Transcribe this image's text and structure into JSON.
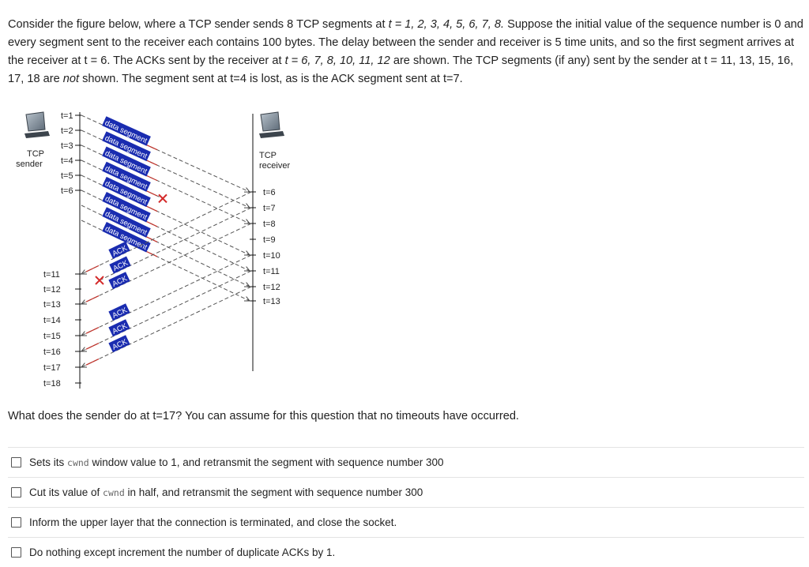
{
  "question": {
    "p1": "Consider the figure below, where a TCP sender sends 8 TCP segments at ",
    "p2": "t = 1, 2, 3, 4, 5, 6, 7, 8.",
    "p3": "  Suppose the initial value of the sequence number is 0 and every segment sent to the receiver each contains 100 bytes. The delay between the sender and receiver is 5 time units, and so the first segment arrives at the receiver at t = 6.  The ACKs sent by the receiver at ",
    "p4": "t = 6, 7, 8, 10, 11, 12",
    "p5": " are shown.  The TCP segments (if any) sent by the sender at t = 11, 13, 15, 16, 17, 18 are ",
    "p6": "not",
    "p7": " shown. The segment sent at t=4 is lost, as is the ACK segment sent at t=7."
  },
  "diagram": {
    "sender_label": [
      "TCP",
      "sender"
    ],
    "receiver_label": [
      "TCP",
      "receiver"
    ],
    "sender_times": [
      "t=1",
      "t=2",
      "t=3",
      "t=4",
      "t=5",
      "t=6",
      "t=11",
      "t=12",
      "t=13",
      "t=14",
      "t=15",
      "t=16",
      "t=17",
      "t=18"
    ],
    "receiver_times": [
      "t=6",
      "t=7",
      "t=8",
      "t=9",
      "t=10",
      "t=11",
      "t=12",
      "t=13"
    ],
    "data_label": "data segment",
    "ack_label": "ACK",
    "loss_mark": "X"
  },
  "prompt": "What does the sender do at t=17?  You can assume for this question that no timeouts have occurred.",
  "options": [
    {
      "before": "Sets its ",
      "code": "cwnd",
      "after": " window value to 1, and retransmit the segment with sequence number 300"
    },
    {
      "before": "Cut its value of ",
      "code": "cwnd",
      "after": " in half, and retransmit the segment with sequence number 300"
    },
    {
      "before": "Inform the upper layer that the connection is terminated, and close the socket.",
      "code": "",
      "after": ""
    },
    {
      "before": "Do nothing except increment the number of duplicate ACKs by 1.",
      "code": "",
      "after": ""
    }
  ],
  "colors": {
    "label_bg": "#1a2cb0",
    "arrow": "#c0322a",
    "dash": "#555555"
  }
}
